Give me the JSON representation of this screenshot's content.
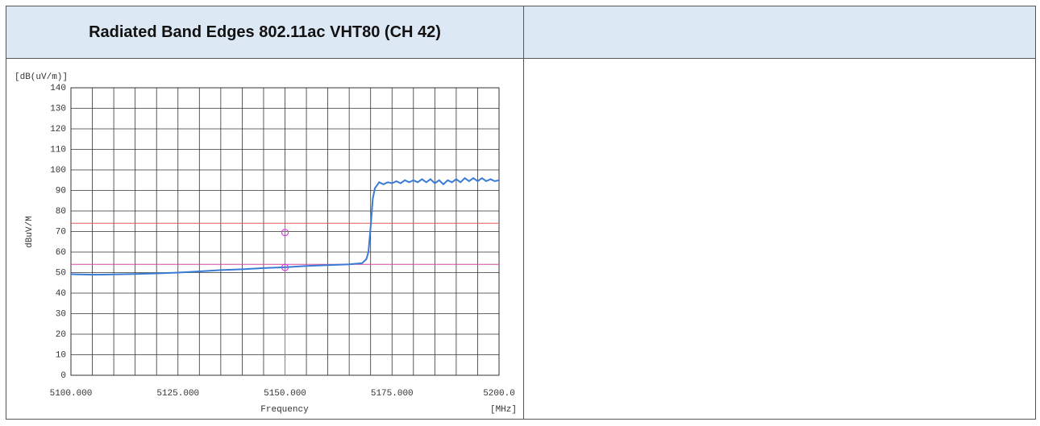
{
  "header": {
    "title": "Radiated Band Edges 802.11ac VHT80 (CH 42)"
  },
  "chart_data": {
    "type": "line",
    "y_unit_label": "[dB(uV/m)]",
    "y_axis_label": "dBuV/M",
    "x_axis_label": "Frequency",
    "x_unit_label": "[MHz]",
    "xlim": [
      5100,
      5200
    ],
    "ylim": [
      0,
      140
    ],
    "xticks": [
      {
        "value": 5100,
        "label": "5100.000"
      },
      {
        "value": 5125,
        "label": "5125.000"
      },
      {
        "value": 5150,
        "label": "5150.000"
      },
      {
        "value": 5175,
        "label": "5175.000"
      },
      {
        "value": 5200,
        "label": "5200.0"
      }
    ],
    "xminorticks": [
      5105,
      5110,
      5115,
      5120,
      5130,
      5135,
      5140,
      5145,
      5155,
      5160,
      5165,
      5170,
      5180,
      5185,
      5190,
      5195
    ],
    "yticks": [
      0,
      10,
      20,
      30,
      40,
      50,
      60,
      70,
      80,
      90,
      100,
      110,
      120,
      130,
      140
    ],
    "grid": true,
    "x": [
      5100,
      5105,
      5110,
      5115,
      5120,
      5125,
      5130,
      5135,
      5140,
      5145,
      5150,
      5155,
      5160,
      5165,
      5168,
      5169,
      5169.5,
      5170,
      5170.5,
      5171,
      5172,
      5173,
      5174,
      5175,
      5176,
      5177,
      5178,
      5179,
      5180,
      5181,
      5182,
      5183,
      5184,
      5185,
      5186,
      5187,
      5188,
      5189,
      5190,
      5191,
      5192,
      5193,
      5194,
      5195,
      5196,
      5197,
      5198,
      5199,
      5200
    ],
    "series": [
      {
        "color": "#3a7bd5",
        "values": [
          49.2,
          49.0,
          49.1,
          49.3,
          49.6,
          50.0,
          50.6,
          51.2,
          51.6,
          52.2,
          52.6,
          53.2,
          53.6,
          54.0,
          54.6,
          56.5,
          60,
          72,
          86,
          91,
          94,
          93,
          94,
          93.5,
          94.5,
          93.5,
          95,
          94,
          95,
          94,
          95.5,
          94,
          95.5,
          93.5,
          95,
          93,
          95,
          94,
          95.5,
          94,
          96,
          94.5,
          96,
          94.5,
          96,
          94.5,
          95.5,
          94.5,
          95
        ]
      }
    ],
    "limit_lines": [
      {
        "value": 74,
        "color": "#e05a5a"
      },
      {
        "value": 54,
        "color": "#d04aa0"
      }
    ],
    "marker_line": {
      "value": 5150,
      "color": "#e040e0"
    },
    "markers": {
      "color": "#e040e0",
      "x": [
        5150,
        5150
      ],
      "y": [
        69.5,
        52.5
      ]
    }
  }
}
